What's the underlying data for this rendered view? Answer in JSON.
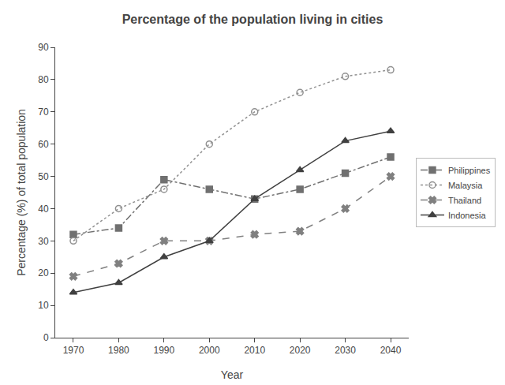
{
  "chart_data": {
    "type": "line",
    "title": "Percentage of the population living in cities",
    "x_label": "Year",
    "y_label": "Percentage (%) of total population",
    "x": [
      1970,
      1980,
      1990,
      2000,
      2010,
      2020,
      2030,
      2040
    ],
    "series": [
      {
        "name": "Philippines",
        "color": "#707070",
        "line_style": "dashdot",
        "marker": "square",
        "values": [
          32,
          34,
          49,
          46,
          43,
          46,
          51,
          56
        ]
      },
      {
        "name": "Malaysia",
        "color": "#909090",
        "line_style": "dot",
        "marker": "circle-open",
        "values": [
          30,
          40,
          46,
          60,
          70,
          76,
          81,
          83
        ]
      },
      {
        "name": "Thailand",
        "color": "#808080",
        "line_style": "dash",
        "marker": "x",
        "values": [
          19,
          23,
          30,
          30,
          32,
          33,
          40,
          50
        ]
      },
      {
        "name": "Indonesia",
        "color": "#404040",
        "line_style": "solid",
        "marker": "triangle-up",
        "values": [
          14,
          17,
          25,
          30,
          43,
          52,
          61,
          64
        ]
      }
    ],
    "xlim": [
      1966,
      2044
    ],
    "xticks": [
      1970,
      1980,
      1990,
      2000,
      2010,
      2020,
      2030,
      2040
    ],
    "ylim": [
      0,
      90
    ],
    "yticks": [
      0,
      10,
      20,
      30,
      40,
      50,
      60,
      70,
      80,
      90
    ],
    "grid": false,
    "legend": "right"
  }
}
